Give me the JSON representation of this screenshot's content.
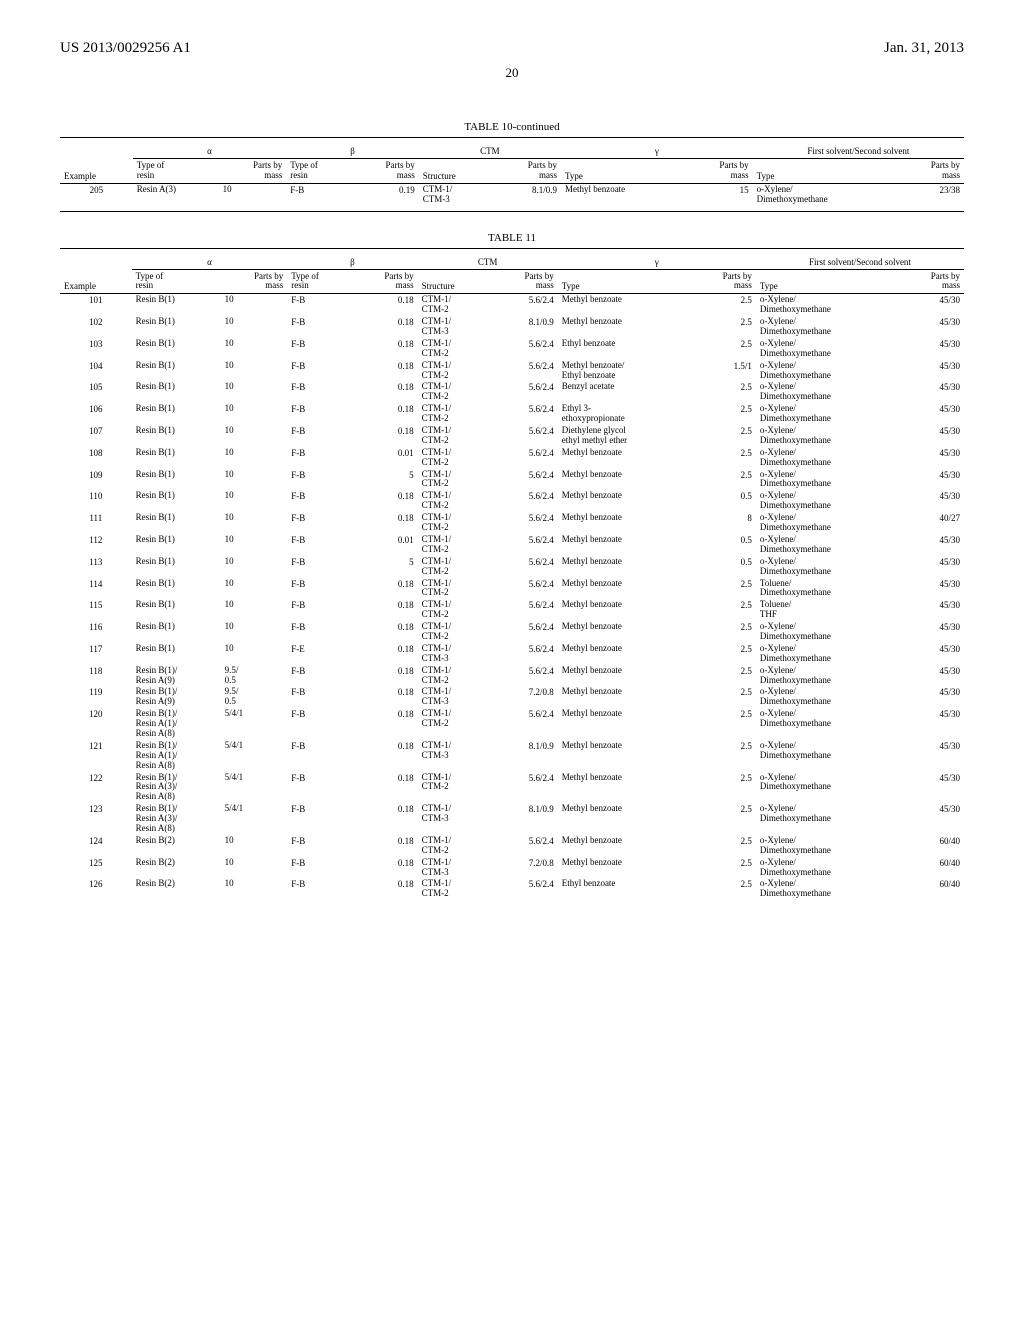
{
  "header": {
    "left": "US 2013/0029256 A1",
    "right": "Jan. 31, 2013",
    "page": "20"
  },
  "table10": {
    "title": "TABLE 10-continued",
    "groups": [
      "α",
      "β",
      "CTM",
      "γ",
      "First solvent/Second solvent"
    ],
    "subheaders": {
      "example": "Example",
      "alpha_type": "Type of\nresin",
      "alpha_parts": "Parts by\nmass",
      "beta_type": "Type of\nresin",
      "beta_parts": "Parts by\nmass",
      "ctm_struct": "Structure",
      "ctm_parts": "Parts by\nmass",
      "gamma_type": "Type",
      "gamma_parts": "Parts by\nmass",
      "solvent_type": "Type",
      "solvent_parts": "Parts by\nmass"
    },
    "rows": [
      {
        "ex": "205",
        "at": "Resin A(3)",
        "ap": "10",
        "bt": "F-B",
        "bp": "0.19",
        "cs": "CTM-1/\nCTM-3",
        "cp": "8.1/0.9",
        "gt": "Methyl benzoate",
        "gp": "15",
        "st": "o-Xylene/\nDimethoxymethane",
        "sp": "23/38"
      }
    ]
  },
  "table11": {
    "title": "TABLE 11",
    "groups": [
      "α",
      "β",
      "CTM",
      "γ",
      "First solvent/Second solvent"
    ],
    "rows": [
      {
        "ex": "101",
        "at": "Resin B(1)",
        "ap": "10",
        "bt": "F-B",
        "bp": "0.18",
        "cs": "CTM-1/\nCTM-2",
        "cp": "5.6/2.4",
        "gt": "Methyl benzoate",
        "gp": "2.5",
        "st": "o-Xylene/\nDimethoxymethane",
        "sp": "45/30"
      },
      {
        "ex": "102",
        "at": "Resin B(1)",
        "ap": "10",
        "bt": "F-B",
        "bp": "0.18",
        "cs": "CTM-1/\nCTM-3",
        "cp": "8.1/0.9",
        "gt": "Methyl benzoate",
        "gp": "2.5",
        "st": "o-Xylene/\nDimethoxymethane",
        "sp": "45/30"
      },
      {
        "ex": "103",
        "at": "Resin B(1)",
        "ap": "10",
        "bt": "F-B",
        "bp": "0.18",
        "cs": "CTM-1/\nCTM-2",
        "cp": "5.6/2.4",
        "gt": "Ethyl benzoate",
        "gp": "2.5",
        "st": "o-Xylene/\nDimethoxymethane",
        "sp": "45/30"
      },
      {
        "ex": "104",
        "at": "Resin B(1)",
        "ap": "10",
        "bt": "F-B",
        "bp": "0.18",
        "cs": "CTM-1/\nCTM-2",
        "cp": "5.6/2.4",
        "gt": "Methyl benzoate/\nEthyl benzoate",
        "gp": "1.5/1",
        "st": "o-Xylene/\nDimethoxymethane",
        "sp": "45/30"
      },
      {
        "ex": "105",
        "at": "Resin B(1)",
        "ap": "10",
        "bt": "F-B",
        "bp": "0.18",
        "cs": "CTM-1/\nCTM-2",
        "cp": "5.6/2.4",
        "gt": "Benzyl acetate",
        "gp": "2.5",
        "st": "o-Xylene/\nDimethoxymethane",
        "sp": "45/30"
      },
      {
        "ex": "106",
        "at": "Resin B(1)",
        "ap": "10",
        "bt": "F-B",
        "bp": "0.18",
        "cs": "CTM-1/\nCTM-2",
        "cp": "5.6/2.4",
        "gt": "Ethyl 3-\nethoxypropionate",
        "gp": "2.5",
        "st": "o-Xylene/\nDimethoxymethane",
        "sp": "45/30"
      },
      {
        "ex": "107",
        "at": "Resin B(1)",
        "ap": "10",
        "bt": "F-B",
        "bp": "0.18",
        "cs": "CTM-1/\nCTM-2",
        "cp": "5.6/2.4",
        "gt": "Diethylene glycol\nethyl methyl ether",
        "gp": "2.5",
        "st": "o-Xylene/\nDimethoxymethane",
        "sp": "45/30"
      },
      {
        "ex": "108",
        "at": "Resin B(1)",
        "ap": "10",
        "bt": "F-B",
        "bp": "0.01",
        "cs": "CTM-1/\nCTM-2",
        "cp": "5.6/2.4",
        "gt": "Methyl benzoate",
        "gp": "2.5",
        "st": "o-Xylene/\nDimethoxymethane",
        "sp": "45/30"
      },
      {
        "ex": "109",
        "at": "Resin B(1)",
        "ap": "10",
        "bt": "F-B",
        "bp": "5",
        "cs": "CTM-1/\nCTM-2",
        "cp": "5.6/2.4",
        "gt": "Methyl benzoate",
        "gp": "2.5",
        "st": "o-Xylene/\nDimethoxymethane",
        "sp": "45/30"
      },
      {
        "ex": "110",
        "at": "Resin B(1)",
        "ap": "10",
        "bt": "F-B",
        "bp": "0.18",
        "cs": "CTM-1/\nCTM-2",
        "cp": "5.6/2.4",
        "gt": "Methyl benzoate",
        "gp": "0.5",
        "st": "o-Xylene/\nDimethoxymethane",
        "sp": "45/30"
      },
      {
        "ex": "111",
        "at": "Resin B(1)",
        "ap": "10",
        "bt": "F-B",
        "bp": "0.18",
        "cs": "CTM-1/\nCTM-2",
        "cp": "5.6/2.4",
        "gt": "Methyl benzoate",
        "gp": "8",
        "st": "o-Xylene/\nDimethoxymethane",
        "sp": "40/27"
      },
      {
        "ex": "112",
        "at": "Resin B(1)",
        "ap": "10",
        "bt": "F-B",
        "bp": "0.01",
        "cs": "CTM-1/\nCTM-2",
        "cp": "5.6/2.4",
        "gt": "Methyl benzoate",
        "gp": "0.5",
        "st": "o-Xylene/\nDimethoxymethane",
        "sp": "45/30"
      },
      {
        "ex": "113",
        "at": "Resin B(1)",
        "ap": "10",
        "bt": "F-B",
        "bp": "5",
        "cs": "CTM-1/\nCTM-2",
        "cp": "5.6/2.4",
        "gt": "Methyl benzoate",
        "gp": "0.5",
        "st": "o-Xylene/\nDimethoxymethane",
        "sp": "45/30"
      },
      {
        "ex": "114",
        "at": "Resin B(1)",
        "ap": "10",
        "bt": "F-B",
        "bp": "0.18",
        "cs": "CTM-1/\nCTM-2",
        "cp": "5.6/2.4",
        "gt": "Methyl benzoate",
        "gp": "2.5",
        "st": "Toluene/\nDimethoxymethane",
        "sp": "45/30"
      },
      {
        "ex": "115",
        "at": "Resin B(1)",
        "ap": "10",
        "bt": "F-B",
        "bp": "0.18",
        "cs": "CTM-1/\nCTM-2",
        "cp": "5.6/2.4",
        "gt": "Methyl benzoate",
        "gp": "2.5",
        "st": "Toluene/\nTHF",
        "sp": "45/30"
      },
      {
        "ex": "116",
        "at": "Resin B(1)",
        "ap": "10",
        "bt": "F-B",
        "bp": "0.18",
        "cs": "CTM-1/\nCTM-2",
        "cp": "5.6/2.4",
        "gt": "Methyl benzoate",
        "gp": "2.5",
        "st": "o-Xylene/\nDimethoxymethane",
        "sp": "45/30"
      },
      {
        "ex": "117",
        "at": "Resin B(1)",
        "ap": "10",
        "bt": "F-E",
        "bp": "0.18",
        "cs": "CTM-1/\nCTM-3",
        "cp": "5.6/2.4",
        "gt": "Methyl benzoate",
        "gp": "2.5",
        "st": "o-Xylene/\nDimethoxymethane",
        "sp": "45/30"
      },
      {
        "ex": "118",
        "at": "Resin B(1)/\nResin A(9)",
        "ap": "9.5/\n0.5",
        "bt": "F-B",
        "bp": "0.18",
        "cs": "CTM-1/\nCTM-2",
        "cp": "5.6/2.4",
        "gt": "Methyl benzoate",
        "gp": "2.5",
        "st": "o-Xylene/\nDimethoxymethane",
        "sp": "45/30"
      },
      {
        "ex": "119",
        "at": "Resin B(1)/\nResin A(9)",
        "ap": "9.5/\n0.5",
        "bt": "F-B",
        "bp": "0.18",
        "cs": "CTM-1/\nCTM-3",
        "cp": "7.2/0.8",
        "gt": "Methyl benzoate",
        "gp": "2.5",
        "st": "o-Xylene/\nDimethoxymethane",
        "sp": "45/30"
      },
      {
        "ex": "120",
        "at": "Resin B(1)/\nResin A(1)/\nResin A(8)",
        "ap": "5/4/1",
        "bt": "F-B",
        "bp": "0.18",
        "cs": "CTM-1/\nCTM-2",
        "cp": "5.6/2.4",
        "gt": "Methyl benzoate",
        "gp": "2.5",
        "st": "o-Xylene/\nDimethoxymethane",
        "sp": "45/30"
      },
      {
        "ex": "121",
        "at": "Resin B(1)/\nResin A(1)/\nResin A(8)",
        "ap": "5/4/1",
        "bt": "F-B",
        "bp": "0.18",
        "cs": "CTM-1/\nCTM-3",
        "cp": "8.1/0.9",
        "gt": "Methyl benzoate",
        "gp": "2.5",
        "st": "o-Xylene/\nDimethoxymethane",
        "sp": "45/30"
      },
      {
        "ex": "122",
        "at": "Resin B(1)/\nResin A(3)/\nResin A(8)",
        "ap": "5/4/1",
        "bt": "F-B",
        "bp": "0.18",
        "cs": "CTM-1/\nCTM-2",
        "cp": "5.6/2.4",
        "gt": "Methyl benzoate",
        "gp": "2.5",
        "st": "o-Xylene/\nDimethoxymethane",
        "sp": "45/30"
      },
      {
        "ex": "123",
        "at": "Resin B(1)/\nResin A(3)/\nResin A(8)",
        "ap": "5/4/1",
        "bt": "F-B",
        "bp": "0.18",
        "cs": "CTM-1/\nCTM-3",
        "cp": "8.1/0.9",
        "gt": "Methyl benzoate",
        "gp": "2.5",
        "st": "o-Xylene/\nDimethoxymethane",
        "sp": "45/30"
      },
      {
        "ex": "124",
        "at": "Resin B(2)",
        "ap": "10",
        "bt": "F-B",
        "bp": "0.18",
        "cs": "CTM-1/\nCTM-2",
        "cp": "5.6/2.4",
        "gt": "Methyl benzoate",
        "gp": "2.5",
        "st": "o-Xylene/\nDimethoxymethane",
        "sp": "60/40"
      },
      {
        "ex": "125",
        "at": "Resin B(2)",
        "ap": "10",
        "bt": "F-B",
        "bp": "0.18",
        "cs": "CTM-1/\nCTM-3",
        "cp": "7.2/0.8",
        "gt": "Methyl benzoate",
        "gp": "2.5",
        "st": "o-Xylene/\nDimethoxymethane",
        "sp": "60/40"
      },
      {
        "ex": "126",
        "at": "Resin B(2)",
        "ap": "10",
        "bt": "F-B",
        "bp": "0.18",
        "cs": "CTM-1/\nCTM-2",
        "cp": "5.6/2.4",
        "gt": "Ethyl benzoate",
        "gp": "2.5",
        "st": "o-Xylene/\nDimethoxymethane",
        "sp": "60/40"
      }
    ]
  }
}
